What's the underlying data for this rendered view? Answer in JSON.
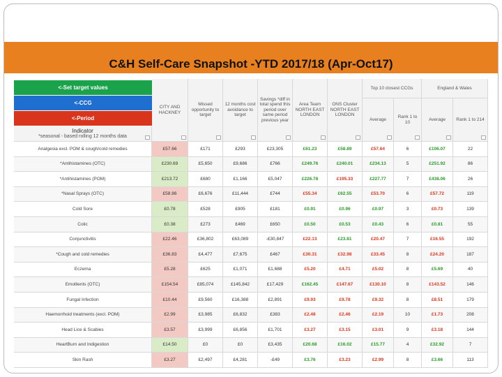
{
  "title": "C&H Self-Care Snapshot -YTD 2017/18 (Apr-Oct17)",
  "buttons": [
    "<-Set target values",
    "<-CCG",
    "<-Period"
  ],
  "table": {
    "indicator_header": "Indicator",
    "indicator_note": "*seasonal - based rolling 12 months data",
    "group_headers": [
      "Top 10 closest CCGs",
      "England & Wales"
    ],
    "columns": [
      "CITY AND HACKNEY",
      "Missed opportunity to target",
      "12 months cost avoidance to target",
      "Savings *diff in total spend this period over same period previous year",
      "Area Team NORTH EAST LONDON",
      "ONS Cluster NORTH EAST LONDON",
      "Average",
      "Rank 1 to 10",
      "Average",
      "Rank 1 to 214"
    ],
    "rows": [
      [
        "Analgesia excl. POM & cough/cold remedies",
        "£57.66",
        "£171",
        "£293",
        "£23,305",
        "£61.23",
        "£58.89",
        "£57.64",
        6,
        "£106.07",
        22
      ],
      [
        "*Antihistamines (OTC)",
        "£230.69",
        "£5,650",
        "£9,686",
        "£766",
        "£249.76",
        "£240.01",
        "£234.13",
        5,
        "£251.92",
        86
      ],
      [
        "*Antihistamines (POM)",
        "£213.72",
        "£680",
        "£1,166",
        "£5,047",
        "£226.78",
        "£195.33",
        "£227.77",
        7,
        "£438.06",
        26
      ],
      [
        "*Nasal Sprays (OTC)",
        "£58.86",
        "£6,676",
        "£11,444",
        "£744",
        "£55.34",
        "£62.55",
        "£53.70",
        6,
        "£57.72",
        119
      ],
      [
        "Cold Sore",
        "£0.78",
        "£528",
        "£905",
        "£181",
        "£0.91",
        "£0.96",
        "£0.97",
        3,
        "£0.73",
        139
      ],
      [
        "Colic",
        "£0.38",
        "£273",
        "£469",
        "£650",
        "£0.50",
        "£0.53",
        "£0.43",
        6,
        "£0.81",
        55
      ],
      [
        "Conjunctivitis",
        "£22.46",
        "£36,802",
        "£63,089",
        "-£30,847",
        "£22.13",
        "£23.81",
        "£20.47",
        7,
        "£16.55",
        192
      ],
      [
        "*Cough and cold remedies",
        "£36.83",
        "£4,477",
        "£7,675",
        "£467",
        "£30.31",
        "£32.98",
        "£33.45",
        8,
        "£24.20",
        187
      ],
      [
        "Eczema",
        "£5.28",
        "£625",
        "£1,071",
        "£1,688",
        "£5.20",
        "£4.71",
        "£5.02",
        8,
        "£5.69",
        40
      ],
      [
        "Emollients (OTC)",
        "£154.54",
        "£85,074",
        "£145,842",
        "£17,429",
        "£162.45",
        "£147.67",
        "£130.10",
        8,
        "£143.52",
        146
      ],
      [
        "Fungal Infection",
        "£10.44",
        "£9,560",
        "£16,388",
        "£2,891",
        "£9.93",
        "£9.78",
        "£9.32",
        8,
        "£8.51",
        179
      ],
      [
        "Haemorrhoid treatments (excl. POM)",
        "£2.99",
        "£3,985",
        "£6,832",
        "£383",
        "£2.48",
        "£2.46",
        "£2.19",
        10,
        "£1.73",
        208
      ],
      [
        "Head Lice & Scabies",
        "£3.57",
        "£3,999",
        "£6,856",
        "£1,701",
        "£3.27",
        "£3.15",
        "£3.01",
        9,
        "£3.18",
        144
      ],
      [
        "HeartBurn and Indigestion",
        "£14.50",
        "£0",
        "£0",
        "£3,435",
        "£20.68",
        "£16.02",
        "£15.77",
        4,
        "£32.92",
        7
      ],
      [
        "Skin Rash",
        "£3.27",
        "£2,497",
        "£4,281",
        "-£49",
        "£3.76",
        "£3.23",
        "£2.99",
        8,
        "£3.66",
        113
      ]
    ]
  }
}
